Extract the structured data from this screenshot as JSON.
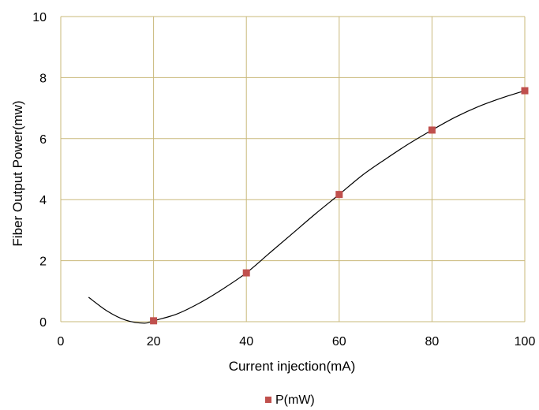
{
  "chart_data": {
    "type": "scatter",
    "xlabel": "Current injection(mA)",
    "ylabel": "Fiber Output Power(mw)",
    "xlim": [
      0,
      100
    ],
    "ylim": [
      0,
      10
    ],
    "x_ticks": [
      0,
      20,
      40,
      60,
      80,
      100
    ],
    "y_ticks": [
      0,
      2,
      4,
      6,
      8,
      10
    ],
    "grid": true,
    "legend_position": "bottom",
    "series": [
      {
        "name": "P(mW)",
        "color": "#c0504d",
        "marker": "square",
        "x": [
          20,
          40,
          60,
          80,
          100
        ],
        "y": [
          0.03,
          1.6,
          4.17,
          6.28,
          7.57
        ]
      }
    ],
    "trendline": {
      "type": "polynomial",
      "color": "#000000",
      "x": [
        6,
        10,
        14,
        18,
        20,
        25,
        30,
        35,
        40,
        45,
        50,
        55,
        60,
        65,
        70,
        75,
        80,
        85,
        90,
        95,
        100
      ],
      "y": [
        0.8,
        0.35,
        0.05,
        -0.05,
        0.03,
        0.25,
        0.62,
        1.08,
        1.6,
        2.25,
        2.9,
        3.55,
        4.17,
        4.8,
        5.33,
        5.83,
        6.28,
        6.7,
        7.05,
        7.33,
        7.57
      ]
    }
  }
}
